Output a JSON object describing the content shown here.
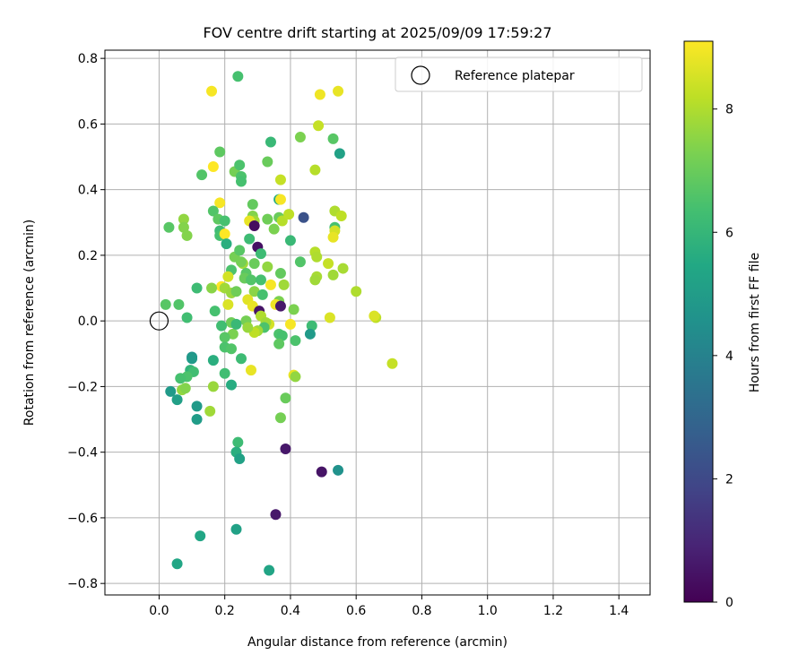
{
  "chart_data": {
    "type": "scatter",
    "title": "FOV centre drift starting at 2025/09/09 17:59:27",
    "xlabel": "Angular distance from reference (arcmin)",
    "ylabel": "Rotation from reference (arcmin)",
    "xlim": [
      -0.165,
      1.495
    ],
    "ylim": [
      -0.835,
      0.825
    ],
    "xticks": [
      0.0,
      0.2,
      0.4,
      0.6,
      0.8,
      1.0,
      1.2,
      1.4
    ],
    "xtick_labels": [
      "0.0",
      "0.2",
      "0.4",
      "0.6",
      "0.8",
      "1.0",
      "1.2",
      "1.4"
    ],
    "yticks": [
      -0.8,
      -0.6,
      -0.4,
      -0.2,
      0.0,
      0.2,
      0.4,
      0.6,
      0.8
    ],
    "ytick_labels": [
      "−0.8",
      "−0.6",
      "−0.4",
      "−0.2",
      "0.0",
      "0.2",
      "0.4",
      "0.6",
      "0.8"
    ],
    "grid": true,
    "legend": {
      "position": "top-right",
      "entries": [
        "Reference platepar"
      ]
    },
    "colorbar": {
      "label": "Hours from first FF file",
      "colormap": "viridis",
      "range": [
        0,
        9.1
      ],
      "ticks": [
        0,
        2,
        4,
        6,
        8
      ],
      "tick_labels": [
        "0",
        "2",
        "4",
        "6",
        "8"
      ]
    },
    "reference_point": {
      "x": 0.0,
      "y": 0.0
    },
    "points": [
      {
        "x": 0.16,
        "y": 0.7,
        "c": 9.0
      },
      {
        "x": 0.24,
        "y": 0.745,
        "c": 6.4
      },
      {
        "x": 0.49,
        "y": 0.69,
        "c": 8.9
      },
      {
        "x": 0.545,
        "y": 0.7,
        "c": 8.8
      },
      {
        "x": 0.485,
        "y": 0.595,
        "c": 8.3
      },
      {
        "x": 0.53,
        "y": 0.555,
        "c": 6.7
      },
      {
        "x": 0.55,
        "y": 0.51,
        "c": 5.2
      },
      {
        "x": 0.34,
        "y": 0.545,
        "c": 6.1
      },
      {
        "x": 0.43,
        "y": 0.56,
        "c": 7.3
      },
      {
        "x": 0.185,
        "y": 0.515,
        "c": 6.8
      },
      {
        "x": 0.165,
        "y": 0.47,
        "c": 9.1
      },
      {
        "x": 0.13,
        "y": 0.445,
        "c": 6.6
      },
      {
        "x": 0.23,
        "y": 0.455,
        "c": 7.2
      },
      {
        "x": 0.245,
        "y": 0.475,
        "c": 6.5
      },
      {
        "x": 0.25,
        "y": 0.44,
        "c": 6.5
      },
      {
        "x": 0.25,
        "y": 0.425,
        "c": 6.4
      },
      {
        "x": 0.33,
        "y": 0.485,
        "c": 7.0
      },
      {
        "x": 0.475,
        "y": 0.46,
        "c": 8.1
      },
      {
        "x": 0.37,
        "y": 0.43,
        "c": 8.3
      },
      {
        "x": 0.365,
        "y": 0.37,
        "c": 5.6
      },
      {
        "x": 0.37,
        "y": 0.37,
        "c": 9.0
      },
      {
        "x": 0.185,
        "y": 0.36,
        "c": 9.0
      },
      {
        "x": 0.285,
        "y": 0.355,
        "c": 6.9
      },
      {
        "x": 0.285,
        "y": 0.32,
        "c": 7.4
      },
      {
        "x": 0.29,
        "y": 0.305,
        "c": 7.8
      },
      {
        "x": 0.275,
        "y": 0.305,
        "c": 8.8
      },
      {
        "x": 0.33,
        "y": 0.31,
        "c": 7.1
      },
      {
        "x": 0.365,
        "y": 0.315,
        "c": 7.0
      },
      {
        "x": 0.375,
        "y": 0.305,
        "c": 8.1
      },
      {
        "x": 0.395,
        "y": 0.325,
        "c": 8.2
      },
      {
        "x": 0.44,
        "y": 0.315,
        "c": 2.3
      },
      {
        "x": 0.535,
        "y": 0.335,
        "c": 8.0
      },
      {
        "x": 0.555,
        "y": 0.32,
        "c": 8.2
      },
      {
        "x": 0.535,
        "y": 0.285,
        "c": 6.4
      },
      {
        "x": 0.535,
        "y": 0.275,
        "c": 8.5
      },
      {
        "x": 0.53,
        "y": 0.255,
        "c": 8.8
      },
      {
        "x": 0.165,
        "y": 0.335,
        "c": 6.6
      },
      {
        "x": 0.18,
        "y": 0.31,
        "c": 6.8
      },
      {
        "x": 0.2,
        "y": 0.305,
        "c": 6.4
      },
      {
        "x": 0.185,
        "y": 0.275,
        "c": 6.2
      },
      {
        "x": 0.185,
        "y": 0.26,
        "c": 6.4
      },
      {
        "x": 0.2,
        "y": 0.265,
        "c": 9.1
      },
      {
        "x": 0.205,
        "y": 0.235,
        "c": 5.7
      },
      {
        "x": 0.075,
        "y": 0.31,
        "c": 7.6
      },
      {
        "x": 0.075,
        "y": 0.285,
        "c": 7.4
      },
      {
        "x": 0.085,
        "y": 0.26,
        "c": 7.4
      },
      {
        "x": 0.03,
        "y": 0.285,
        "c": 6.7
      },
      {
        "x": 0.275,
        "y": 0.25,
        "c": 6.2
      },
      {
        "x": 0.3,
        "y": 0.225,
        "c": 0.4
      },
      {
        "x": 0.29,
        "y": 0.29,
        "c": 0.3
      },
      {
        "x": 0.31,
        "y": 0.205,
        "c": 6.2
      },
      {
        "x": 0.35,
        "y": 0.28,
        "c": 7.3
      },
      {
        "x": 0.4,
        "y": 0.245,
        "c": 6.1
      },
      {
        "x": 0.475,
        "y": 0.21,
        "c": 8.1
      },
      {
        "x": 0.48,
        "y": 0.195,
        "c": 8.0
      },
      {
        "x": 0.515,
        "y": 0.175,
        "c": 8.3
      },
      {
        "x": 0.56,
        "y": 0.16,
        "c": 7.9
      },
      {
        "x": 0.53,
        "y": 0.14,
        "c": 7.8
      },
      {
        "x": 0.48,
        "y": 0.135,
        "c": 7.9
      },
      {
        "x": 0.475,
        "y": 0.125,
        "c": 7.8
      },
      {
        "x": 0.43,
        "y": 0.18,
        "c": 6.6
      },
      {
        "x": 0.6,
        "y": 0.09,
        "c": 8.0
      },
      {
        "x": 0.23,
        "y": 0.195,
        "c": 7.2
      },
      {
        "x": 0.245,
        "y": 0.215,
        "c": 6.7
      },
      {
        "x": 0.255,
        "y": 0.175,
        "c": 7.8
      },
      {
        "x": 0.25,
        "y": 0.18,
        "c": 7.2
      },
      {
        "x": 0.29,
        "y": 0.175,
        "c": 7.0
      },
      {
        "x": 0.33,
        "y": 0.165,
        "c": 7.6
      },
      {
        "x": 0.37,
        "y": 0.145,
        "c": 6.9
      },
      {
        "x": 0.22,
        "y": 0.155,
        "c": 6.5
      },
      {
        "x": 0.265,
        "y": 0.145,
        "c": 6.7
      },
      {
        "x": 0.26,
        "y": 0.13,
        "c": 7.0
      },
      {
        "x": 0.28,
        "y": 0.125,
        "c": 6.6
      },
      {
        "x": 0.31,
        "y": 0.125,
        "c": 6.4
      },
      {
        "x": 0.21,
        "y": 0.135,
        "c": 8.5
      },
      {
        "x": 0.19,
        "y": 0.105,
        "c": 9.1
      },
      {
        "x": 0.2,
        "y": 0.1,
        "c": 7.8
      },
      {
        "x": 0.22,
        "y": 0.085,
        "c": 7.7
      },
      {
        "x": 0.235,
        "y": 0.09,
        "c": 7.1
      },
      {
        "x": 0.16,
        "y": 0.1,
        "c": 7.5
      },
      {
        "x": 0.115,
        "y": 0.1,
        "c": 6.2
      },
      {
        "x": 0.34,
        "y": 0.11,
        "c": 9.0
      },
      {
        "x": 0.38,
        "y": 0.11,
        "c": 7.8
      },
      {
        "x": 0.29,
        "y": 0.09,
        "c": 7.5
      },
      {
        "x": 0.315,
        "y": 0.08,
        "c": 6.4
      },
      {
        "x": 0.365,
        "y": 0.06,
        "c": 7.3
      },
      {
        "x": 0.02,
        "y": 0.05,
        "c": 6.7
      },
      {
        "x": 0.06,
        "y": 0.05,
        "c": 6.6
      },
      {
        "x": 0.21,
        "y": 0.05,
        "c": 8.6
      },
      {
        "x": 0.17,
        "y": 0.03,
        "c": 6.4
      },
      {
        "x": 0.27,
        "y": 0.065,
        "c": 8.7
      },
      {
        "x": 0.285,
        "y": 0.045,
        "c": 8.8
      },
      {
        "x": 0.355,
        "y": 0.05,
        "c": 8.9
      },
      {
        "x": 0.37,
        "y": 0.045,
        "c": 0.6
      },
      {
        "x": 0.305,
        "y": 0.03,
        "c": 0.5
      },
      {
        "x": 0.31,
        "y": 0.015,
        "c": 8.0
      },
      {
        "x": 0.41,
        "y": 0.035,
        "c": 7.3
      },
      {
        "x": 0.085,
        "y": 0.01,
        "c": 6.3
      },
      {
        "x": 0.52,
        "y": 0.01,
        "c": 8.6
      },
      {
        "x": 0.66,
        "y": 0.01,
        "c": 8.2
      },
      {
        "x": 0.655,
        "y": 0.015,
        "c": 8.6
      },
      {
        "x": 0.4,
        "y": -0.01,
        "c": 9.0
      },
      {
        "x": 0.335,
        "y": -0.01,
        "c": 8.5
      },
      {
        "x": 0.325,
        "y": -0.005,
        "c": 7.8
      },
      {
        "x": 0.32,
        "y": -0.02,
        "c": 6.5
      },
      {
        "x": 0.3,
        "y": -0.03,
        "c": 7.8
      },
      {
        "x": 0.29,
        "y": -0.035,
        "c": 8.2
      },
      {
        "x": 0.265,
        "y": 0.0,
        "c": 7.2
      },
      {
        "x": 0.27,
        "y": -0.02,
        "c": 7.7
      },
      {
        "x": 0.22,
        "y": -0.005,
        "c": 7.1
      },
      {
        "x": 0.225,
        "y": -0.04,
        "c": 7.3
      },
      {
        "x": 0.19,
        "y": -0.015,
        "c": 6.3
      },
      {
        "x": 0.2,
        "y": -0.05,
        "c": 6.7
      },
      {
        "x": 0.2,
        "y": -0.08,
        "c": 6.5
      },
      {
        "x": 0.22,
        "y": -0.085,
        "c": 6.6
      },
      {
        "x": 0.235,
        "y": -0.01,
        "c": 6.1
      },
      {
        "x": 0.365,
        "y": -0.04,
        "c": 6.5
      },
      {
        "x": 0.375,
        "y": -0.045,
        "c": 6.4
      },
      {
        "x": 0.365,
        "y": -0.07,
        "c": 6.8
      },
      {
        "x": 0.415,
        "y": -0.06,
        "c": 6.5
      },
      {
        "x": 0.465,
        "y": -0.015,
        "c": 6.2
      },
      {
        "x": 0.46,
        "y": -0.04,
        "c": 4.9
      },
      {
        "x": 0.1,
        "y": -0.11,
        "c": 4.7
      },
      {
        "x": 0.1,
        "y": -0.115,
        "c": 4.9
      },
      {
        "x": 0.165,
        "y": -0.12,
        "c": 5.7
      },
      {
        "x": 0.25,
        "y": -0.115,
        "c": 6.2
      },
      {
        "x": 0.095,
        "y": -0.15,
        "c": 5.9
      },
      {
        "x": 0.105,
        "y": -0.155,
        "c": 6.3
      },
      {
        "x": 0.085,
        "y": -0.17,
        "c": 6.5
      },
      {
        "x": 0.065,
        "y": -0.175,
        "c": 6.4
      },
      {
        "x": 0.07,
        "y": -0.21,
        "c": 7.6
      },
      {
        "x": 0.08,
        "y": -0.205,
        "c": 7.4
      },
      {
        "x": 0.2,
        "y": -0.16,
        "c": 6.3
      },
      {
        "x": 0.28,
        "y": -0.15,
        "c": 8.8
      },
      {
        "x": 0.165,
        "y": -0.2,
        "c": 7.7
      },
      {
        "x": 0.22,
        "y": -0.195,
        "c": 5.6
      },
      {
        "x": 0.035,
        "y": -0.215,
        "c": 4.9
      },
      {
        "x": 0.055,
        "y": -0.24,
        "c": 5.1
      },
      {
        "x": 0.115,
        "y": -0.26,
        "c": 4.9
      },
      {
        "x": 0.115,
        "y": -0.3,
        "c": 5.0
      },
      {
        "x": 0.155,
        "y": -0.275,
        "c": 7.8
      },
      {
        "x": 0.41,
        "y": -0.165,
        "c": 8.8
      },
      {
        "x": 0.415,
        "y": -0.17,
        "c": 7.6
      },
      {
        "x": 0.385,
        "y": -0.235,
        "c": 7.0
      },
      {
        "x": 0.37,
        "y": -0.295,
        "c": 7.2
      },
      {
        "x": 0.71,
        "y": -0.13,
        "c": 8.3
      },
      {
        "x": 0.24,
        "y": -0.37,
        "c": 6.2
      },
      {
        "x": 0.235,
        "y": -0.4,
        "c": 5.7
      },
      {
        "x": 0.245,
        "y": -0.42,
        "c": 5.2
      },
      {
        "x": 0.385,
        "y": -0.39,
        "c": 0.6
      },
      {
        "x": 0.495,
        "y": -0.46,
        "c": 0.5
      },
      {
        "x": 0.545,
        "y": -0.455,
        "c": 4.6
      },
      {
        "x": 0.355,
        "y": -0.59,
        "c": 0.6
      },
      {
        "x": 0.235,
        "y": -0.635,
        "c": 5.2
      },
      {
        "x": 0.125,
        "y": -0.655,
        "c": 5.4
      },
      {
        "x": 0.055,
        "y": -0.74,
        "c": 5.4
      },
      {
        "x": 0.335,
        "y": -0.76,
        "c": 5.3
      }
    ]
  }
}
